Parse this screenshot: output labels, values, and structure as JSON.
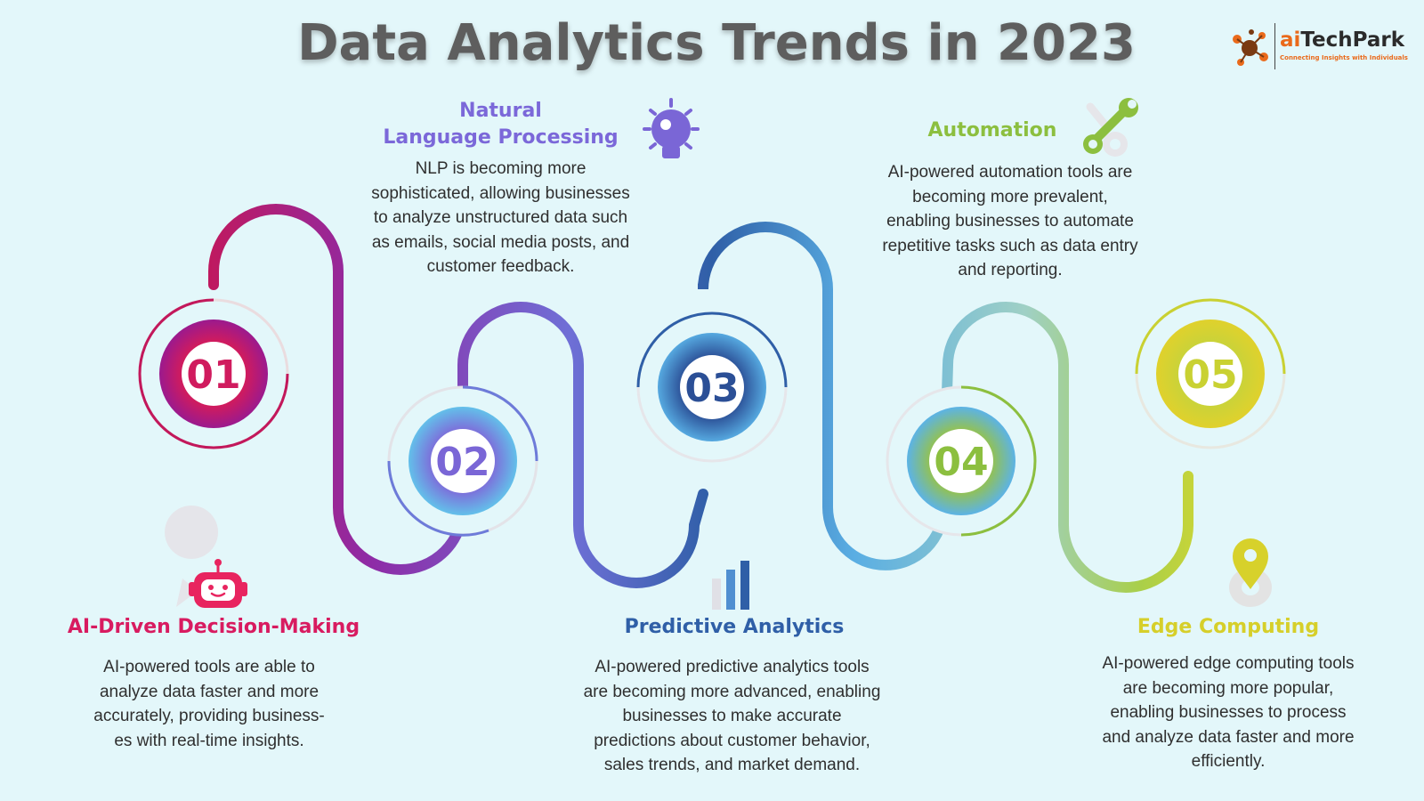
{
  "title": "Data Analytics Trends in 2023",
  "logo": {
    "name_accent": "ai",
    "name_rest": "TechPark",
    "tagline": "Connecting Insights with Individuals"
  },
  "colors": {
    "background": "#e3f7fa",
    "step1": "#d81b60",
    "step2": "#7b68d9",
    "step3": "#2f5fa7",
    "step4": "#8cbf3f",
    "step5": "#c9d132"
  },
  "steps": [
    {
      "number": "01",
      "heading": "AI-Driven Decision-Making",
      "text": "AI-powered tools are able to analyze data faster and more accurately, providing business-es with real-time insights.",
      "icon": "robot-chat-icon",
      "color": "#d81b60"
    },
    {
      "number": "02",
      "heading_line1": "Natural",
      "heading_line2": "Language Processing",
      "text": "NLP is becoming more sophisticated, allowing businesses to analyze unstructured data such as emails, social media posts, and customer feedback.",
      "icon": "lightbulb-icon",
      "color": "#7b68d9"
    },
    {
      "number": "03",
      "heading": "Predictive Analytics",
      "text": "AI-powered predictive analytics tools are becoming more advanced, enabling businesses to make accurate predictions about customer behavior, sales trends, and market demand.",
      "icon": "bar-chart-icon",
      "color": "#2f5fa7"
    },
    {
      "number": "04",
      "heading": "Automation",
      "text": "AI-powered automation tools are becoming more prevalent, enabling businesses to automate repetitive tasks such as data entry and reporting.",
      "icon": "wrench-gear-icon",
      "color": "#8cbf3f"
    },
    {
      "number": "05",
      "heading": "Edge Computing",
      "text": "AI-powered edge computing tools are becoming more popular, enabling businesses to process and analyze data faster and more efficiently.",
      "icon": "location-pin-icon",
      "color": "#c9d132"
    }
  ]
}
